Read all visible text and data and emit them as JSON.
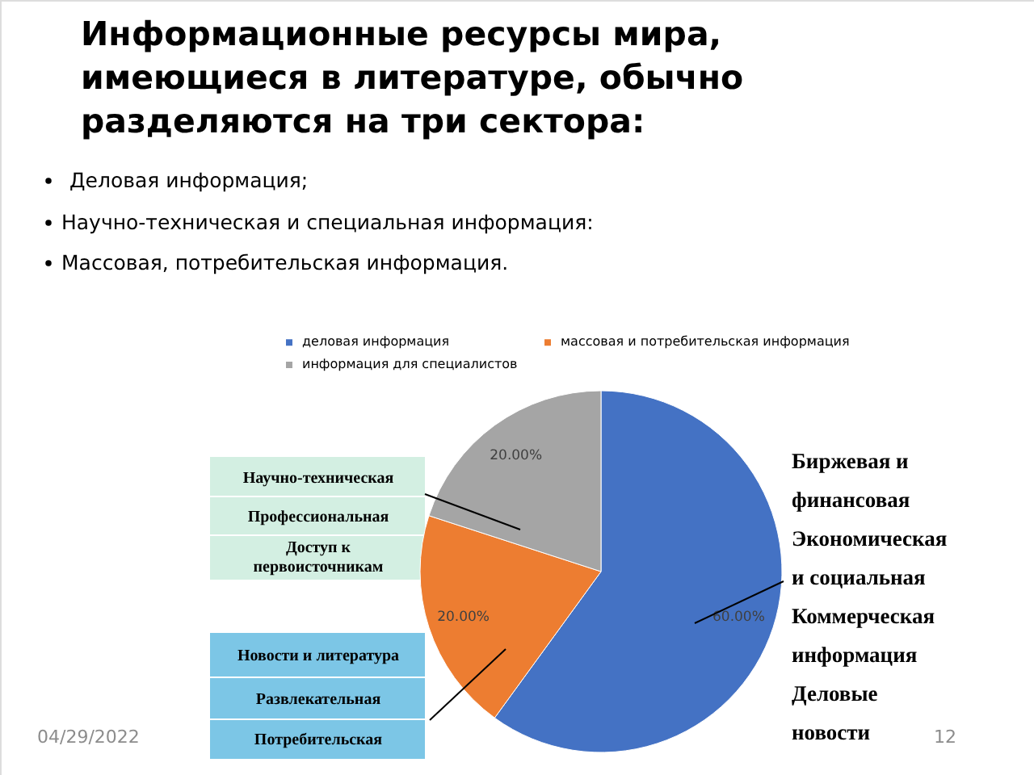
{
  "chart_data": {
    "type": "pie",
    "title": "Информационные ресурсы мира, имеющиеся в литературе, обычно разделяются на три сектора:",
    "categories": [
      "деловая информация",
      "массовая и потребительская информация",
      "информация для специалистов"
    ],
    "values": [
      60,
      20,
      20
    ],
    "colors": [
      "#4472c4",
      "#ed7d31",
      "#a5a5a5"
    ],
    "value_labels": [
      "60.00%",
      "20.00%",
      "20.00%"
    ],
    "legend": "top",
    "annotations": [
      "Деловая информация;",
      "Научно-техническая и специальная информация:",
      "Массовая, потребительская информация.",
      "Научно-техническая",
      "Профессиональная",
      "Доступ к первоисточникам",
      "Новости и литература",
      "Развлекательная",
      "Потребительская",
      "Биржевая и финансовая",
      "Экономическая и социальная",
      "Коммерческая информация",
      "Деловые новости",
      "04/29/2022",
      "12"
    ]
  }
}
